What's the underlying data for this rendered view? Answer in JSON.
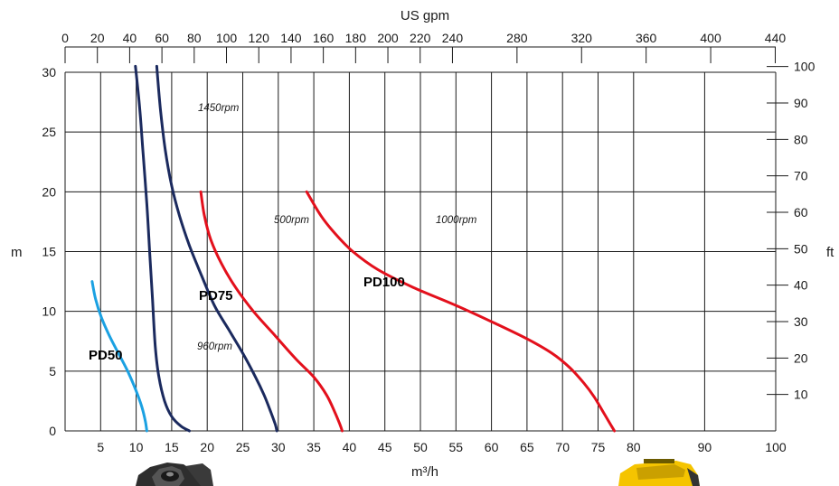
{
  "chart_data": {
    "type": "line",
    "title": "",
    "xlabel": "m³/h",
    "ylabel": "m",
    "xlim": [
      0,
      100
    ],
    "ylim": [
      0,
      30
    ],
    "x_ticks": [
      5,
      10,
      15,
      20,
      25,
      30,
      35,
      40,
      45,
      50,
      55,
      60,
      65,
      70,
      75,
      80,
      90,
      100
    ],
    "y_ticks": [
      0,
      5,
      10,
      15,
      20,
      25,
      30
    ],
    "top_axis": {
      "label": "US gpm",
      "ticks": [
        "0",
        "20",
        "40",
        "60",
        "80",
        "100",
        "120",
        "140",
        "160",
        "180",
        "200",
        "220",
        "240",
        "280",
        "320",
        "360",
        "400",
        "440"
      ]
    },
    "right_axis": {
      "label": "ft",
      "ticks": [
        "10",
        "20",
        "30",
        "40",
        "50",
        "60",
        "70",
        "80",
        "90",
        "100"
      ]
    },
    "grid": true,
    "pump_labels": [
      "PD50",
      "PD75",
      "PD100"
    ],
    "series": [
      {
        "label": "PD50",
        "color": "#1ba1e2",
        "x": [
          3.8,
          4.3,
          5.1,
          6.2,
          7.5,
          8.8,
          9.9,
          10.8,
          11.3,
          11.5
        ],
        "y": [
          12.5,
          11,
          9.5,
          8,
          6.5,
          5,
          3.5,
          2,
          0.8,
          0
        ]
      },
      {
        "label": "960rpm",
        "color": "#1b2a5e",
        "x": [
          9.9,
          10.5,
          11.0,
          11.5,
          11.9,
          12.3,
          12.7,
          13.2,
          14.0,
          15.0,
          16.3,
          17.5
        ],
        "y": [
          30.5,
          27,
          23,
          19,
          15,
          11,
          7,
          4.5,
          2.5,
          1.2,
          0.4,
          0
        ]
      },
      {
        "label": "1450rpm",
        "color": "#1b2a5e",
        "x": [
          12.9,
          13.4,
          14.1,
          15.0,
          16.1,
          17.5,
          19.2,
          21.0,
          23.0,
          25.0,
          26.8,
          28.0,
          29.0,
          29.6,
          29.8
        ],
        "y": [
          30.5,
          27,
          23.5,
          20.5,
          18,
          15.5,
          13,
          10.5,
          8.5,
          6.5,
          4.5,
          3,
          1.5,
          0.5,
          0
        ]
      },
      {
        "label": "500rpm",
        "color": "#e3101c",
        "x": [
          19.1,
          19.6,
          20.5,
          22.0,
          24.0,
          26.5,
          29.5,
          32.5,
          35.0,
          36.8,
          38.0,
          38.7,
          39.0
        ],
        "y": [
          20,
          18,
          16,
          14,
          12,
          10,
          8,
          6,
          4.5,
          3,
          1.5,
          0.5,
          0
        ]
      },
      {
        "label": "1000rpm",
        "color": "#e3101c",
        "x": [
          34.0,
          36.0,
          38.0,
          40.5,
          44.0,
          49.0,
          55.0,
          60.5,
          65.0,
          68.5,
          71.0,
          73.0,
          74.5,
          75.8,
          76.8,
          77.3
        ],
        "y": [
          20,
          18,
          16.5,
          15,
          13.5,
          12,
          10.5,
          9,
          7.7,
          6.5,
          5.3,
          4,
          2.8,
          1.5,
          0.5,
          0
        ]
      }
    ]
  }
}
